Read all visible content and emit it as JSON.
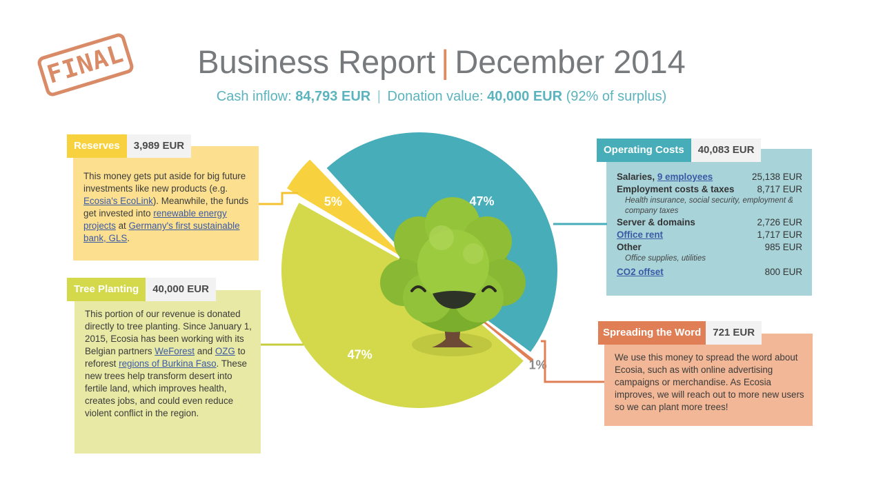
{
  "stamp": {
    "text": "FINAL"
  },
  "header": {
    "title_left": "Business Report",
    "title_sep": "|",
    "title_right": "December 2014",
    "cash_label": "Cash inflow:",
    "cash_value": "84,793 EUR",
    "sep": "|",
    "donation_label": "Donation value:",
    "donation_value": "40,000 EUR",
    "donation_note": "(92% of surplus)"
  },
  "reserves": {
    "name": "Reserves",
    "amount": "3,989 EUR",
    "text1": "This money gets put aside for big future investments like new products (e.g. ",
    "link1": "Ecosia's EcoLink",
    "text2": "). Meanwhile, the funds get invested into ",
    "link2": "renewable energy projects",
    "text3": " at ",
    "link3": "Germany's first sustainable bank, GLS",
    "text4": "."
  },
  "tree_planting": {
    "name": "Tree Planting",
    "amount": "40,000 EUR",
    "text1": "This portion of our revenue is donated directly to tree planting. Since January 1, 2015, Ecosia has been working with its Belgian partners ",
    "link1": "WeForest",
    "text2": " and ",
    "link2": "OZG",
    "text3": " to reforest ",
    "link3": "regions of Burkina Faso",
    "text4": ". These new trees help transform desert into fertile land, which improves health, creates jobs, and could even reduce violent conflict in the region."
  },
  "operating_costs": {
    "name": "Operating Costs",
    "amount": "40,083 EUR",
    "rows": [
      {
        "label": "Salaries, ",
        "link": "9 employees",
        "value": "25,138 EUR"
      },
      {
        "label": "Employment costs & taxes",
        "value": "8,717 EUR",
        "note": "Health insurance, social security, employment & company taxes"
      },
      {
        "label": "Server & domains",
        "value": "2,726 EUR"
      },
      {
        "link": "Office rent",
        "value": "1,717 EUR"
      },
      {
        "label": "Other",
        "value": "985 EUR",
        "note": "Office supplies, utilities"
      },
      {
        "link": "CO2 offset",
        "value": "800 EUR"
      }
    ]
  },
  "spreading": {
    "name": "Spreading the Word",
    "amount": "721 EUR",
    "text": "We use this money to spread the word about Ecosia, such as with online advertising campaigns or merchandise. As Ecosia improves, we will reach out to more new users so we can plant more trees!"
  },
  "colors": {
    "reserves": "#f8d23e",
    "reserves_card": "#fce090",
    "tree_planting": "#d3d94a",
    "tree_planting_card": "#e7e9a5",
    "operating_costs": "#46adb9",
    "operating_costs_card": "#a8d3d9",
    "spreading": "#e07f55",
    "spreading_card": "#f1b796",
    "title_accent": "#e08a5e"
  },
  "chart_data": {
    "type": "pie",
    "title": "",
    "slices": [
      {
        "name": "Operating Costs",
        "value": 40083,
        "label": "47%",
        "color": "#46adb9"
      },
      {
        "name": "Spreading the Word",
        "value": 721,
        "label": "1%",
        "color": "#e07f55"
      },
      {
        "name": "Tree Planting",
        "value": 40000,
        "label": "47%",
        "color": "#d3d94a"
      },
      {
        "name": "Reserves",
        "value": 3989,
        "label": "5%",
        "color": "#f8d23e"
      }
    ]
  }
}
